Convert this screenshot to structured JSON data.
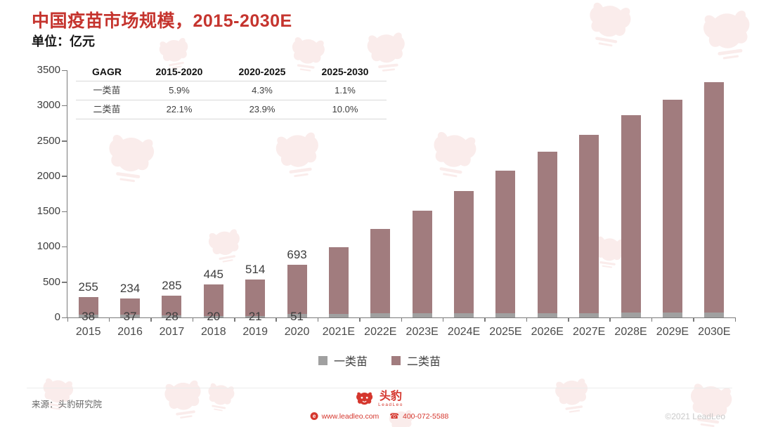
{
  "header": {
    "title": "中国疫苗市场规模，2015-2030E",
    "unit_label": "单位：亿元"
  },
  "colors": {
    "title_red": "#c5342e",
    "brand_red": "#d5372e",
    "class1_gray": "#a0a0a0",
    "class2_mauve": "#a17c7e"
  },
  "cagr_table": {
    "columns": [
      "GAGR",
      "2015-2020",
      "2020-2025",
      "2025-2030"
    ],
    "rows": [
      {
        "label": "一类苗",
        "values": [
          "5.9%",
          "4.3%",
          "1.1%"
        ]
      },
      {
        "label": "二类苗",
        "values": [
          "22.1%",
          "23.9%",
          "10.0%"
        ]
      }
    ]
  },
  "chart_data": {
    "type": "bar",
    "stacked": true,
    "title": "中国疫苗市场规模，2015-2030E",
    "unit": "亿元",
    "categories": [
      "2015",
      "2016",
      "2017",
      "2018",
      "2019",
      "2020",
      "2021E",
      "2022E",
      "2023E",
      "2024E",
      "2025E",
      "2026E",
      "2027E",
      "2028E",
      "2029E",
      "2030E"
    ],
    "series": [
      {
        "name": "一类苗",
        "color": "#a0a0a0",
        "values": [
          38,
          37,
          28,
          20,
          21,
          51,
          53,
          55,
          58,
          60,
          63,
          63,
          64,
          65,
          66,
          66
        ],
        "shown_labels": [
          "38",
          "37",
          "28",
          "20",
          "21",
          "51"
        ]
      },
      {
        "name": "二类苗",
        "color": "#a17c7e",
        "values": [
          255,
          234,
          285,
          445,
          514,
          693,
          945,
          1195,
          1450,
          1730,
          2020,
          2280,
          2525,
          2795,
          3015,
          3270
        ],
        "shown_labels": [
          "255",
          "234",
          "285",
          "445",
          "514",
          "693"
        ]
      }
    ],
    "ylim": [
      0,
      3500
    ],
    "ytick_step": 500,
    "grid": false,
    "legend_position": "bottom"
  },
  "footer": {
    "source": "来源：头豹研究院",
    "brand_name": "头豹",
    "brand_sub": "LeadLeo",
    "website": "www.leadleo.com",
    "phone": "400-072-5588",
    "copyright": "©2021 LeadLeo"
  }
}
